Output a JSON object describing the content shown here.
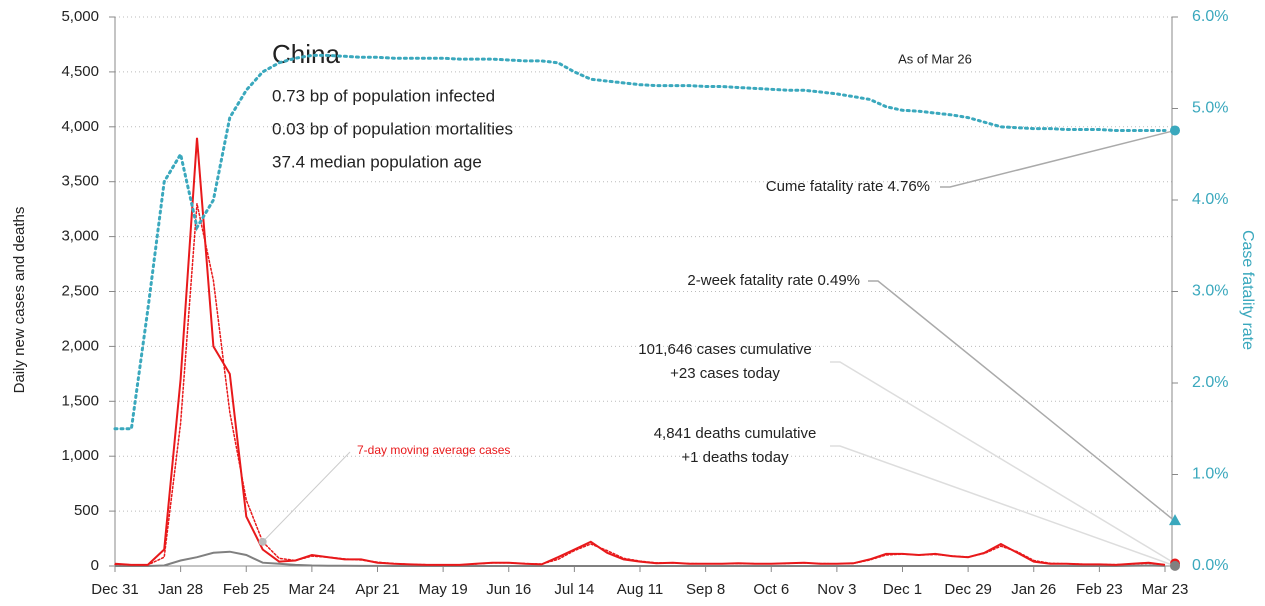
{
  "chart_data": {
    "type": "line",
    "title": "China",
    "notes": [
      "0.73 bp of population infected",
      "0.03 bp of population mortalities",
      "37.4 median population age"
    ],
    "as_of": "As of Mar 26",
    "ylabel": "Daily new cases and deaths",
    "y2label": "Case fatality rate",
    "categories": [
      "Dec 31",
      null,
      null,
      null,
      "Jan 28",
      null,
      null,
      null,
      "Feb 25",
      null,
      null,
      null,
      "Mar 24",
      null,
      null,
      null,
      "Apr 21",
      null,
      null,
      null,
      "May 19",
      null,
      null,
      null,
      "Jun 16",
      null,
      null,
      null,
      "Jul 14",
      null,
      null,
      null,
      "Aug 11",
      null,
      null,
      null,
      "Sep 8",
      null,
      null,
      null,
      "Oct 6",
      null,
      null,
      null,
      "Nov 3",
      null,
      null,
      null,
      "Dec 1",
      null,
      null,
      null,
      "Dec 29",
      null,
      null,
      null,
      "Jan 26",
      null,
      null,
      null,
      "Feb 23",
      null,
      null,
      null,
      "Mar 23"
    ],
    "series": [
      {
        "name": "Daily new cases",
        "color": "#e8191b",
        "style": "solid",
        "axis": "y",
        "values": [
          20,
          10,
          10,
          150,
          1700,
          3900,
          2000,
          1750,
          450,
          150,
          40,
          50,
          100,
          80,
          60,
          60,
          30,
          20,
          15,
          10,
          10,
          10,
          20,
          30,
          30,
          20,
          15,
          80,
          150,
          220,
          120,
          60,
          40,
          25,
          30,
          20,
          20,
          20,
          25,
          20,
          20,
          25,
          30,
          20,
          20,
          25,
          60,
          110,
          110,
          100,
          110,
          90,
          80,
          120,
          200,
          120,
          40,
          20,
          20,
          15,
          15,
          10,
          20,
          30,
          10
        ]
      },
      {
        "name": "7-day moving average cases",
        "color": "#e8191b",
        "style": "dotted",
        "axis": "y",
        "values": [
          15,
          12,
          10,
          80,
          1300,
          3300,
          2600,
          1400,
          600,
          220,
          70,
          50,
          90,
          80,
          65,
          55,
          35,
          22,
          15,
          12,
          10,
          10,
          18,
          28,
          28,
          22,
          18,
          60,
          140,
          200,
          140,
          70,
          45,
          28,
          28,
          22,
          20,
          20,
          23,
          21,
          20,
          24,
          28,
          22,
          20,
          24,
          55,
          100,
          108,
          100,
          105,
          92,
          82,
          115,
          180,
          130,
          50,
          25,
          20,
          16,
          15,
          12,
          18,
          25,
          12
        ]
      },
      {
        "name": "Daily new deaths",
        "color": "#808080",
        "style": "solid",
        "axis": "y",
        "values": [
          0,
          0,
          0,
          5,
          50,
          80,
          120,
          130,
          100,
          30,
          20,
          10,
          5,
          3,
          2,
          1,
          1,
          0,
          0,
          0,
          0,
          0,
          0,
          0,
          0,
          0,
          0,
          0,
          0,
          0,
          0,
          0,
          0,
          0,
          0,
          0,
          0,
          0,
          0,
          0,
          0,
          0,
          0,
          0,
          0,
          0,
          0,
          0,
          0,
          0,
          0,
          0,
          0,
          0,
          0,
          0,
          0,
          0,
          0,
          0,
          0,
          0,
          2,
          5,
          1
        ]
      },
      {
        "name": "Case fatality rate",
        "color": "#3aa8bd",
        "style": "dotted",
        "axis": "y2",
        "values": [
          1.5,
          1.5,
          2.8,
          4.2,
          4.5,
          3.7,
          4.0,
          4.9,
          5.2,
          5.4,
          5.5,
          5.55,
          5.58,
          5.58,
          5.57,
          5.56,
          5.56,
          5.55,
          5.55,
          5.55,
          5.55,
          5.54,
          5.54,
          5.54,
          5.53,
          5.52,
          5.52,
          5.5,
          5.4,
          5.32,
          5.3,
          5.28,
          5.26,
          5.25,
          5.25,
          5.25,
          5.24,
          5.24,
          5.23,
          5.22,
          5.21,
          5.2,
          5.2,
          5.18,
          5.16,
          5.13,
          5.1,
          5.02,
          4.98,
          4.97,
          4.95,
          4.93,
          4.9,
          4.85,
          4.8,
          4.79,
          4.78,
          4.78,
          4.77,
          4.77,
          4.77,
          4.76,
          4.76,
          4.76,
          4.76
        ]
      }
    ],
    "ylim": [
      0,
      5000
    ],
    "yticks": [
      0,
      500,
      {
        "value": 1000,
        "label": "1,000"
      },
      {
        "value": 1500,
        "label": "1,500"
      },
      {
        "value": 2000,
        "label": "2,000"
      },
      {
        "value": 2500,
        "label": "2,500"
      },
      {
        "value": 3000,
        "label": "3,000"
      },
      {
        "value": 3500,
        "label": "3,500"
      },
      {
        "value": 4000,
        "label": "4,000"
      },
      {
        "value": 4500,
        "label": "4,500"
      },
      {
        "value": 5000,
        "label": "5,000"
      }
    ],
    "y2lim": [
      0,
      6
    ],
    "y2ticks": [
      {
        "value": 0,
        "label": "0.0%"
      },
      {
        "value": 1,
        "label": "1.0%"
      },
      {
        "value": 2,
        "label": "2.0%"
      },
      {
        "value": 3,
        "label": "3.0%"
      },
      {
        "value": 4,
        "label": "4.0%"
      },
      {
        "value": 5,
        "label": "5.0%"
      },
      {
        "value": 6,
        "label": "6.0%"
      }
    ],
    "grid": true,
    "annotation": "7-day moving average cases",
    "callouts": [
      {
        "lines": [
          "Cume fatality rate 4.76%"
        ],
        "value": 4.76,
        "axis": "y2",
        "color": "#3aa8bd",
        "marker": "circle"
      },
      {
        "lines": [
          "2-week fatality rate 0.49%"
        ],
        "value": 0.49,
        "axis": "y2",
        "color": "#3aa8bd",
        "marker": "triangle"
      },
      {
        "lines": [
          "101,646 cases cumulative",
          "+23 cases today"
        ],
        "value": 23,
        "axis": "y",
        "color": "#e8191b",
        "marker": "circle"
      },
      {
        "lines": [
          "4,841 deaths cumulative",
          "+1 deaths today"
        ],
        "value": 1,
        "axis": "y",
        "color": "#808080",
        "marker": "circle"
      }
    ]
  }
}
